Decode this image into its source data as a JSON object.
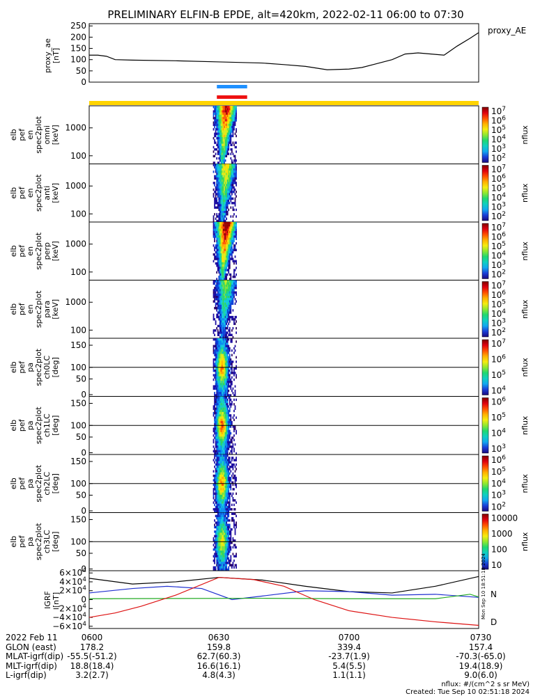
{
  "chart_data": {
    "type": "heatmap",
    "title": "PRELIMINARY ELFIN-B EPDE, alt=420km, 2022-02-11 06:00 to 07:30",
    "time_range": [
      "2022-02-11 06:00",
      "2022-02-11 07:30"
    ],
    "proxy_ae": {
      "ylabel": [
        "proxy_ae",
        "[nT]"
      ],
      "legend": "proxy_AE",
      "ylim": [
        0,
        260
      ],
      "yticks": [
        "250",
        "200",
        "150",
        "100",
        "50",
        "0"
      ],
      "times_min": [
        0,
        2,
        4,
        6,
        10,
        20,
        30,
        40,
        45,
        50,
        55,
        60,
        63,
        66,
        70,
        73,
        76,
        79,
        82,
        85,
        88,
        90
      ],
      "values": [
        120,
        120,
        115,
        100,
        98,
        95,
        90,
        85,
        78,
        70,
        55,
        58,
        65,
        80,
        100,
        125,
        130,
        125,
        120,
        160,
        195,
        220
      ],
      "color": "#000000"
    },
    "bars": [
      {
        "color": "#1e90ff",
        "start_min": 29.5,
        "end_min": 36.5
      },
      {
        "color": "#ee1111",
        "start_min": 29.5,
        "end_min": 36.5
      },
      {
        "color": "#ffd400",
        "start_min": 0,
        "end_min": 90
      }
    ],
    "spectral_panels": [
      {
        "ylabel": [
          "elb",
          "pef",
          "en",
          "spec2plot",
          "omni",
          "[keV]"
        ],
        "yaxis": "energy",
        "yticks": [
          "1000",
          "100"
        ],
        "cbar_ticks": [
          "10^7",
          "10^6",
          "10^5",
          "10^4",
          "10^3",
          "10^2"
        ],
        "intensity": 1.0
      },
      {
        "ylabel": [
          "elb",
          "pef",
          "en",
          "spec2plot",
          "anti",
          "[keV]"
        ],
        "yaxis": "energy",
        "yticks": [
          "1000",
          "100"
        ],
        "cbar_ticks": [
          "10^7",
          "10^6",
          "10^5",
          "10^4",
          "10^3",
          "10^2"
        ],
        "intensity": 0.7
      },
      {
        "ylabel": [
          "elb",
          "pef",
          "en",
          "spec2plot",
          "perp",
          "[keV]"
        ],
        "yaxis": "energy",
        "yticks": [
          "1000",
          "100"
        ],
        "cbar_ticks": [
          "10^7",
          "10^6",
          "10^5",
          "10^4",
          "10^3",
          "10^2"
        ],
        "intensity": 1.1
      },
      {
        "ylabel": [
          "elb",
          "pef",
          "en",
          "spec2plot",
          "para",
          "[keV]"
        ],
        "yaxis": "energy",
        "yticks": [
          "1000",
          "100"
        ],
        "cbar_ticks": [
          "10^7",
          "10^6",
          "10^5",
          "10^4",
          "10^3",
          "10^2"
        ],
        "intensity": 0.55
      },
      {
        "ylabel": [
          "elb",
          "pef",
          "pa",
          "spec2plot",
          "ch0LC",
          "[deg]"
        ],
        "yaxis": "pa",
        "yticks": [
          "150",
          "100",
          "50",
          "0"
        ],
        "cbar_ticks": [
          "10^7",
          "10^6",
          "10^5",
          "10^4"
        ],
        "intensity": 0.8
      },
      {
        "ylabel": [
          "elb",
          "pef",
          "pa",
          "spec2plot",
          "ch1LC",
          "[deg]"
        ],
        "yaxis": "pa",
        "yticks": [
          "150",
          "100",
          "50",
          "0"
        ],
        "cbar_ticks": [
          "10^6",
          "10^5",
          "10^4",
          "10^3"
        ],
        "intensity": 0.85
      },
      {
        "ylabel": [
          "elb",
          "pef",
          "pa",
          "spec2plot",
          "ch2LC",
          "[deg]"
        ],
        "yaxis": "pa",
        "yticks": [
          "150",
          "100",
          "50",
          "0"
        ],
        "cbar_ticks": [
          "10^6",
          "10^5",
          "10^4",
          "10^3",
          "10^2"
        ],
        "intensity": 0.8
      },
      {
        "ylabel": [
          "elb",
          "pef",
          "pa",
          "spec2plot",
          "ch3LC",
          "[deg]"
        ],
        "yaxis": "pa",
        "yticks": [
          "150",
          "100",
          "50",
          "0"
        ],
        "cbar_ticks": [
          "10000",
          "1000",
          "100",
          "10"
        ],
        "intensity": 0.7
      }
    ],
    "colorbar_label": "nflux",
    "igrf": {
      "ylabel": [
        "IGRF",
        "[nT]"
      ],
      "ylim": [
        -65000,
        65000
      ],
      "yticks": [
        "6×10^4",
        "4×10^4",
        "2×10^4",
        "0",
        "−2×10^4",
        "−4×10^4",
        "−6×10^4"
      ],
      "series": [
        {
          "name": "",
          "color": "#000000",
          "times_min": [
            0,
            10,
            20,
            30,
            40,
            50,
            60,
            70,
            80,
            90
          ],
          "values": [
            48000,
            35000,
            40000,
            50000,
            44000,
            30000,
            18000,
            15000,
            30000,
            52000
          ]
        },
        {
          "name": "",
          "color": "#1f2fd0",
          "times_min": [
            0,
            10,
            18,
            26,
            33,
            40,
            50,
            60,
            70,
            80,
            90
          ],
          "values": [
            15000,
            25000,
            30000,
            25000,
            0,
            8000,
            20000,
            18000,
            10000,
            12000,
            5000
          ]
        },
        {
          "name": "N",
          "color": "#22aa22",
          "times_min": [
            0,
            20,
            40,
            60,
            80,
            88,
            90
          ],
          "values": [
            2000,
            2500,
            3000,
            2000,
            2000,
            12000,
            6000
          ]
        },
        {
          "name": "D",
          "color": "#dd1111",
          "times_min": [
            0,
            6,
            12,
            20,
            30,
            38,
            45,
            52,
            60,
            70,
            80,
            90
          ],
          "values": [
            -40000,
            -30000,
            -15000,
            10000,
            50000,
            45000,
            30000,
            0,
            -25000,
            -40000,
            -50000,
            -58000
          ]
        }
      ],
      "right_labels": [
        "N",
        "D"
      ],
      "stamp": "Mon Sep 10 18:51:18 2024"
    },
    "orbit_table": {
      "rows": [
        {
          "label": "2022 Feb 11",
          "values": [
            "0600",
            "0630",
            "0700",
            "0730"
          ]
        },
        {
          "label": "GLON (east)",
          "values": [
            "178.2",
            "159.8",
            "339.4",
            "157.4"
          ]
        },
        {
          "label": "MLAT-igrf(dip)",
          "values": [
            "-55.5(-51.2)",
            "62.7(60.3)",
            "-23.7(1.9)",
            "-70.3(-65.0)"
          ]
        },
        {
          "label": "MLT-igrf(dip)",
          "values": [
            "18.8(18.4)",
            "16.6(16.1)",
            "5.4(5.5)",
            "19.4(18.9)"
          ]
        },
        {
          "label": "L-igrf(dip)",
          "values": [
            "3.2(2.7)",
            "4.8(4.3)",
            "1.1(1.1)",
            "9.0(6.0)"
          ]
        }
      ]
    },
    "footer": {
      "units": "nflux: #/(cm^2 s sr MeV)",
      "created": "Created: Tue Sep 10 02:51:18 2024"
    }
  }
}
